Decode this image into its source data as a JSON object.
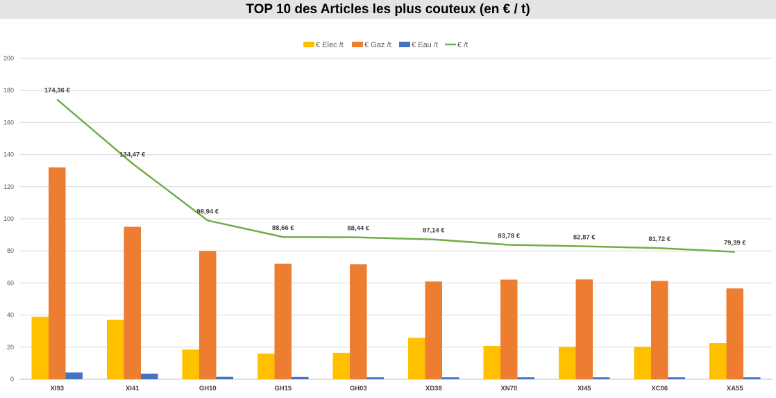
{
  "colors": {
    "elec": "#FFC000",
    "gaz": "#ED7D31",
    "eau": "#4472C4",
    "total": "#70AD47",
    "grid": "#d9d9d9",
    "title_bg": "#e4e4e4"
  },
  "chart_data": {
    "type": "bar",
    "title": "TOP 10 des Articles les plus couteux (en € / t)",
    "categories": [
      "XI93",
      "XI41",
      "GH10",
      "GH15",
      "GH03",
      "XD38",
      "XN70",
      "XI45",
      "XC06",
      "XA55"
    ],
    "ylim": [
      0,
      200
    ],
    "yticks": [
      0,
      20,
      40,
      60,
      80,
      100,
      120,
      140,
      160,
      180,
      200
    ],
    "grid": true,
    "legend_position": "top",
    "series": [
      {
        "name": "€ Elec /t",
        "type": "bar",
        "color": "#FFC000",
        "values": [
          39,
          37,
          18.5,
          16,
          16.5,
          25.8,
          20.8,
          20.2,
          20.2,
          22.5
        ]
      },
      {
        "name": "€ Gaz /t",
        "type": "bar",
        "color": "#ED7D31",
        "values": [
          132,
          95,
          80,
          72,
          71.7,
          60.9,
          62.1,
          62.2,
          61.3,
          56.6
        ]
      },
      {
        "name": "€ Eau /t",
        "type": "bar",
        "color": "#4472C4",
        "values": [
          4.2,
          3.5,
          1.5,
          1.4,
          1.2,
          1.2,
          1.2,
          1.2,
          1.2,
          1.2
        ]
      },
      {
        "name": "€ /t",
        "type": "line",
        "color": "#70AD47",
        "values": [
          174.36,
          134.47,
          98.94,
          88.66,
          88.44,
          87.14,
          83.78,
          82.87,
          81.72,
          79.39
        ],
        "labels": [
          "174,36 €",
          "134,47 €",
          "98,94 €",
          "88,66 €",
          "88,44 €",
          "87,14 €",
          "83,78 €",
          "82,87 €",
          "81,72 €",
          "79,39 €"
        ]
      }
    ]
  }
}
